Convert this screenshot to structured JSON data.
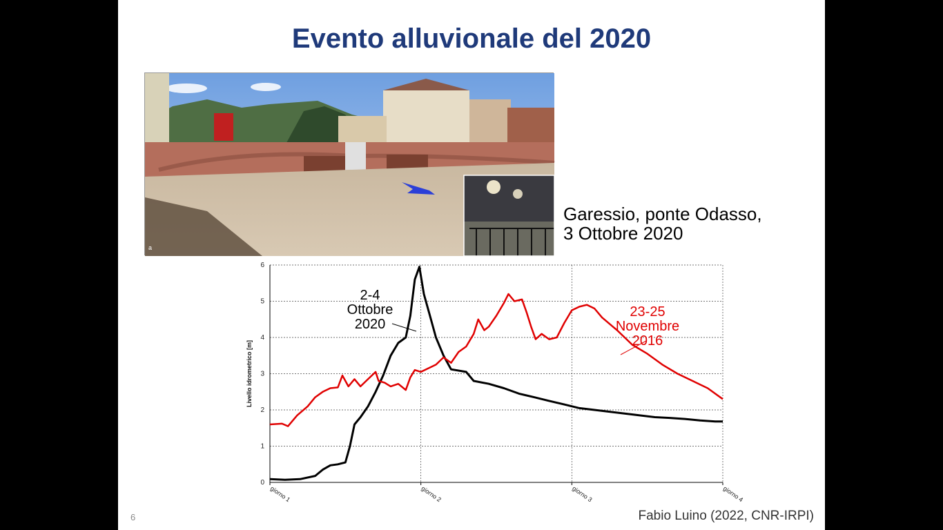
{
  "slide": {
    "title": "Evento alluvionale del 2020",
    "caption_line1": "Garessio, ponte Odasso,",
    "caption_line2": "3 Ottobre 2020",
    "photo_label": "a",
    "slide_number": "6",
    "credit": "Fabio Luino (2022, CNR-IRPI)"
  },
  "chart_data": {
    "type": "line",
    "title": "",
    "xlabel": "",
    "ylabel": "Livello idrometrico [m]",
    "x_ticks": [
      "giorno 1",
      "giorno 2",
      "giorno 3",
      "giorno 4"
    ],
    "y_ticks": [
      "0",
      "1",
      "2",
      "3",
      "4",
      "5",
      "6"
    ],
    "xlim": [
      0,
      3
    ],
    "ylim": [
      0,
      6
    ],
    "grid": "dashed",
    "series": [
      {
        "name": "2-4 Ottobre 2020",
        "color": "#000000",
        "points": [
          [
            0,
            0.09
          ],
          [
            0.1,
            0.07
          ],
          [
            0.2,
            0.09
          ],
          [
            0.3,
            0.18
          ],
          [
            0.35,
            0.35
          ],
          [
            0.4,
            0.47
          ],
          [
            0.45,
            0.5
          ],
          [
            0.5,
            0.55
          ],
          [
            0.53,
            1.0
          ],
          [
            0.56,
            1.6
          ],
          [
            0.6,
            1.8
          ],
          [
            0.65,
            2.1
          ],
          [
            0.7,
            2.5
          ],
          [
            0.75,
            2.95
          ],
          [
            0.8,
            3.5
          ],
          [
            0.85,
            3.85
          ],
          [
            0.9,
            4.0
          ],
          [
            0.93,
            4.6
          ],
          [
            0.96,
            5.6
          ],
          [
            0.99,
            5.95
          ],
          [
            1.02,
            5.2
          ],
          [
            1.06,
            4.6
          ],
          [
            1.1,
            4.0
          ],
          [
            1.15,
            3.5
          ],
          [
            1.2,
            3.12
          ],
          [
            1.3,
            3.05
          ],
          [
            1.35,
            2.8
          ],
          [
            1.45,
            2.72
          ],
          [
            1.55,
            2.6
          ],
          [
            1.65,
            2.45
          ],
          [
            1.75,
            2.35
          ],
          [
            1.85,
            2.25
          ],
          [
            1.95,
            2.15
          ],
          [
            2.05,
            2.05
          ],
          [
            2.15,
            2.0
          ],
          [
            2.25,
            1.95
          ],
          [
            2.35,
            1.9
          ],
          [
            2.45,
            1.85
          ],
          [
            2.55,
            1.8
          ],
          [
            2.65,
            1.78
          ],
          [
            2.75,
            1.75
          ],
          [
            2.85,
            1.71
          ],
          [
            2.95,
            1.68
          ],
          [
            3.0,
            1.68
          ]
        ]
      },
      {
        "name": "23-25 Novembre 2016",
        "color": "#e00000",
        "points": [
          [
            0,
            1.6
          ],
          [
            0.08,
            1.62
          ],
          [
            0.12,
            1.55
          ],
          [
            0.18,
            1.85
          ],
          [
            0.25,
            2.1
          ],
          [
            0.3,
            2.35
          ],
          [
            0.35,
            2.5
          ],
          [
            0.4,
            2.6
          ],
          [
            0.45,
            2.62
          ],
          [
            0.48,
            2.95
          ],
          [
            0.52,
            2.65
          ],
          [
            0.56,
            2.85
          ],
          [
            0.6,
            2.65
          ],
          [
            0.65,
            2.85
          ],
          [
            0.7,
            3.05
          ],
          [
            0.72,
            2.8
          ],
          [
            0.76,
            2.75
          ],
          [
            0.8,
            2.65
          ],
          [
            0.85,
            2.72
          ],
          [
            0.9,
            2.55
          ],
          [
            0.93,
            2.9
          ],
          [
            0.96,
            3.1
          ],
          [
            1.0,
            3.05
          ],
          [
            1.05,
            3.15
          ],
          [
            1.1,
            3.25
          ],
          [
            1.15,
            3.45
          ],
          [
            1.2,
            3.3
          ],
          [
            1.25,
            3.6
          ],
          [
            1.3,
            3.75
          ],
          [
            1.35,
            4.1
          ],
          [
            1.38,
            4.5
          ],
          [
            1.42,
            4.2
          ],
          [
            1.45,
            4.3
          ],
          [
            1.5,
            4.6
          ],
          [
            1.55,
            4.95
          ],
          [
            1.58,
            5.2
          ],
          [
            1.62,
            5.0
          ],
          [
            1.67,
            5.05
          ],
          [
            1.7,
            4.7
          ],
          [
            1.73,
            4.3
          ],
          [
            1.76,
            3.95
          ],
          [
            1.8,
            4.1
          ],
          [
            1.85,
            3.95
          ],
          [
            1.9,
            4.0
          ],
          [
            1.95,
            4.4
          ],
          [
            2.0,
            4.75
          ],
          [
            2.05,
            4.85
          ],
          [
            2.1,
            4.9
          ],
          [
            2.15,
            4.8
          ],
          [
            2.2,
            4.55
          ],
          [
            2.3,
            4.2
          ],
          [
            2.4,
            3.8
          ],
          [
            2.5,
            3.55
          ],
          [
            2.6,
            3.25
          ],
          [
            2.7,
            3.0
          ],
          [
            2.8,
            2.8
          ],
          [
            2.9,
            2.6
          ],
          [
            3.0,
            2.3
          ]
        ]
      }
    ],
    "annotations": [
      {
        "lines": [
          "2-4",
          "Ottobre",
          "2020"
        ],
        "series": "2-4 Ottobre 2020"
      },
      {
        "lines": [
          "23-25",
          "Novembre",
          "2016"
        ],
        "series": "23-25 Novembre 2016"
      }
    ]
  }
}
